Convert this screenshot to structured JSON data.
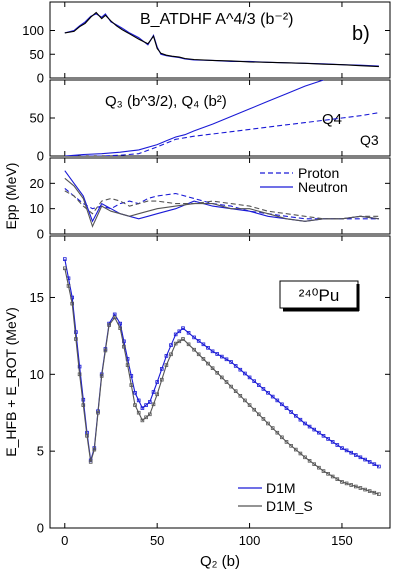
{
  "figure_label": "b)",
  "nucleus": "²⁴⁰Pu",
  "xlabel": "Q₂ (b)",
  "x_ticks": [
    0,
    50,
    100,
    150
  ],
  "colors": {
    "blue": "#1a1ad6",
    "black": "#000000",
    "gray": "#555555"
  },
  "chart_data": [
    {
      "type": "line",
      "title": "B_ATDHF A^4/3 (b⁻²)",
      "xlim": [
        -8,
        176
      ],
      "ylim": [
        0,
        160
      ],
      "yticks": [
        0,
        50,
        100
      ],
      "series": [
        {
          "name": "",
          "color": "#1a1ad6",
          "dash": "",
          "x": [
            0,
            5,
            8,
            11,
            14,
            17,
            20,
            22,
            25,
            28,
            31,
            35,
            40,
            45,
            48,
            50,
            52,
            55,
            58,
            62,
            65,
            70,
            80,
            90,
            100,
            110,
            120,
            130,
            140,
            150,
            160,
            170
          ],
          "y": [
            95,
            100,
            110,
            118,
            130,
            135,
            128,
            135,
            118,
            112,
            105,
            95,
            85,
            70,
            90,
            65,
            50,
            47,
            45,
            43,
            40,
            38,
            37,
            35,
            35,
            33,
            32,
            31,
            30,
            28,
            27,
            25
          ]
        },
        {
          "name": "",
          "color": "#000000",
          "dash": "",
          "x": [
            0,
            5,
            8,
            11,
            14,
            17,
            20,
            22,
            25,
            28,
            31,
            35,
            40,
            45,
            48,
            50,
            52,
            55,
            58,
            62,
            65,
            70,
            80,
            90,
            100,
            110,
            120,
            130,
            140,
            150,
            160,
            170
          ],
          "y": [
            95,
            98,
            108,
            115,
            128,
            138,
            125,
            132,
            120,
            110,
            102,
            93,
            82,
            72,
            88,
            62,
            52,
            48,
            46,
            44,
            41,
            39,
            37,
            36,
            34,
            33,
            32,
            31,
            29,
            28,
            26,
            24
          ]
        }
      ]
    },
    {
      "type": "line",
      "title": "Q₃ (b^3/2), Q₄ (b²)",
      "xlim": [
        -8,
        176
      ],
      "ylim": [
        0,
        100
      ],
      "yticks": [
        0,
        50
      ],
      "series": [
        {
          "name": "Q4",
          "color": "#1a1ad6",
          "dash": "",
          "x": [
            0,
            10,
            20,
            30,
            40,
            50,
            55,
            60,
            65,
            70,
            80,
            90,
            100,
            110,
            120,
            130,
            140
          ],
          "y": [
            0,
            2,
            3,
            5,
            8,
            15,
            20,
            25,
            28,
            33,
            42,
            52,
            62,
            72,
            82,
            92,
            100
          ]
        },
        {
          "name": "Q3",
          "color": "#1a1ad6",
          "dash": "5,3",
          "x": [
            0,
            10,
            20,
            30,
            40,
            50,
            60,
            70,
            80,
            90,
            100,
            110,
            120,
            130,
            140,
            150,
            160,
            170
          ],
          "y": [
            0,
            0,
            0,
            1,
            3,
            12,
            22,
            26,
            29,
            32,
            35,
            38,
            41,
            44,
            47,
            50,
            53,
            57
          ]
        }
      ]
    },
    {
      "type": "line",
      "title": "",
      "ylabel": "Epp (MeV)",
      "xlim": [
        -8,
        176
      ],
      "ylim": [
        0,
        30
      ],
      "yticks": [
        0,
        10,
        20
      ],
      "legend": [
        "Proton",
        "Neutron"
      ],
      "series": [
        {
          "name": "Proton",
          "color": "#1a1ad6",
          "dash": "5,3",
          "x": [
            0,
            5,
            10,
            15,
            20,
            25,
            30,
            35,
            40,
            45,
            50,
            60,
            70,
            80,
            90,
            100,
            110,
            120,
            130,
            140,
            150,
            160,
            170
          ],
          "y": [
            18,
            15,
            12,
            10,
            11,
            10,
            12,
            13,
            12,
            14,
            15,
            16,
            14,
            12,
            11,
            9,
            8,
            7,
            6,
            6,
            6,
            6,
            6
          ]
        },
        {
          "name": "Neutron",
          "color": "#1a1ad6",
          "dash": "",
          "x": [
            0,
            5,
            10,
            15,
            20,
            25,
            30,
            35,
            40,
            45,
            50,
            60,
            70,
            80,
            90,
            100,
            110,
            120,
            130,
            140,
            150,
            160,
            170
          ],
          "y": [
            25,
            20,
            15,
            5,
            12,
            10,
            8,
            7,
            6,
            7,
            8,
            10,
            13,
            11,
            10,
            9,
            7,
            6,
            5,
            6,
            6,
            7,
            6
          ]
        },
        {
          "name": "",
          "color": "#555555",
          "dash": "5,3",
          "x": [
            0,
            5,
            10,
            15,
            20,
            25,
            30,
            35,
            40,
            45,
            50,
            60,
            70,
            80,
            90,
            100,
            110,
            120,
            130,
            140,
            150,
            160,
            170
          ],
          "y": [
            17,
            15,
            11,
            8,
            13,
            14,
            13,
            11,
            12,
            13,
            13,
            12,
            12,
            13,
            12,
            11,
            9,
            8,
            7,
            6,
            6,
            7,
            7
          ]
        },
        {
          "name": "",
          "color": "#555555",
          "dash": "",
          "x": [
            0,
            5,
            10,
            15,
            20,
            25,
            30,
            35,
            40,
            45,
            50,
            60,
            70,
            80,
            90,
            100,
            110,
            120,
            130,
            140,
            150,
            160,
            170
          ],
          "y": [
            22,
            19,
            14,
            3,
            11,
            9,
            8,
            7,
            8,
            9,
            10,
            11,
            12,
            12,
            10,
            10,
            8,
            6,
            5,
            6,
            6,
            7,
            6
          ]
        }
      ]
    },
    {
      "type": "line",
      "title": "",
      "ylabel": "E_HFB + E_ROT (MeV)",
      "xlim": [
        -8,
        176
      ],
      "ylim": [
        0,
        19
      ],
      "yticks": [
        0,
        5,
        10,
        15
      ],
      "legend": [
        "D1M",
        "D1M_S"
      ],
      "series": [
        {
          "name": "D1M",
          "color": "#1a1ad6",
          "markers": true,
          "x": [
            0,
            4,
            8,
            12,
            14,
            16,
            20,
            24,
            27,
            30,
            34,
            38,
            42,
            46,
            50,
            55,
            60,
            64,
            70,
            80,
            90,
            100,
            110,
            120,
            130,
            140,
            150,
            160,
            170
          ],
          "y": [
            17.5,
            15.0,
            10.5,
            6.2,
            4.4,
            5.2,
            10.0,
            13.3,
            13.9,
            13.3,
            11.0,
            8.8,
            7.8,
            8.2,
            9.5,
            11.2,
            12.6,
            13.0,
            12.4,
            11.5,
            10.8,
            9.8,
            8.8,
            7.8,
            6.8,
            6.0,
            5.2,
            4.6,
            4.0
          ]
        },
        {
          "name": "D1M_S",
          "color": "#555555",
          "markers": true,
          "x": [
            0,
            4,
            8,
            12,
            14,
            16,
            20,
            24,
            27,
            30,
            34,
            38,
            42,
            46,
            50,
            55,
            60,
            64,
            70,
            80,
            90,
            100,
            110,
            120,
            130,
            140,
            150,
            160,
            170
          ],
          "y": [
            16.9,
            14.6,
            10.0,
            6.0,
            4.3,
            5.1,
            9.9,
            13.2,
            13.7,
            13.0,
            10.6,
            8.0,
            7.0,
            7.4,
            8.7,
            10.6,
            12.0,
            12.3,
            11.6,
            10.4,
            9.2,
            8.0,
            6.8,
            5.6,
            4.6,
            3.7,
            3.0,
            2.6,
            2.2
          ]
        }
      ]
    }
  ]
}
